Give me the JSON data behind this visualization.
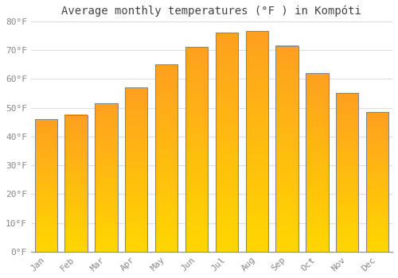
{
  "title": "Average monthly temperatures (°F ) in Kompóti",
  "months": [
    "Jan",
    "Feb",
    "Mar",
    "Apr",
    "May",
    "Jun",
    "Jul",
    "Aug",
    "Sep",
    "Oct",
    "Nov",
    "Dec"
  ],
  "values": [
    46,
    47.5,
    51.5,
    57,
    65,
    71,
    76,
    76.5,
    71.5,
    62,
    55,
    48.5
  ],
  "bar_color_bottom": "#FFD700",
  "bar_color_top": "#FFA020",
  "bar_edge_color": "#888888",
  "ylim": [
    0,
    80
  ],
  "yticks": [
    0,
    10,
    20,
    30,
    40,
    50,
    60,
    70,
    80
  ],
  "ytick_labels": [
    "0°F",
    "10°F",
    "20°F",
    "30°F",
    "40°F",
    "50°F",
    "60°F",
    "70°F",
    "80°F"
  ],
  "background_color": "#ffffff",
  "grid_color": "#dddddd",
  "title_fontsize": 10,
  "tick_fontsize": 8,
  "tick_color": "#888888",
  "font_family": "monospace",
  "bar_width": 0.75
}
